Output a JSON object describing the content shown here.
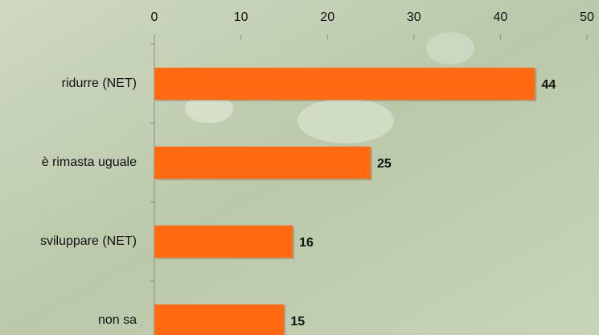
{
  "chart_data": {
    "type": "bar",
    "orientation": "horizontal",
    "categories": [
      "ridurre (NET)",
      "è rimasta uguale",
      "sviluppare (NET)",
      "non sa"
    ],
    "values": [
      44,
      25,
      16,
      15
    ],
    "color": "#ff6a13",
    "xlim": [
      0,
      50
    ],
    "xticks": [
      0,
      10,
      20,
      30,
      40,
      50
    ],
    "grid": false
  }
}
